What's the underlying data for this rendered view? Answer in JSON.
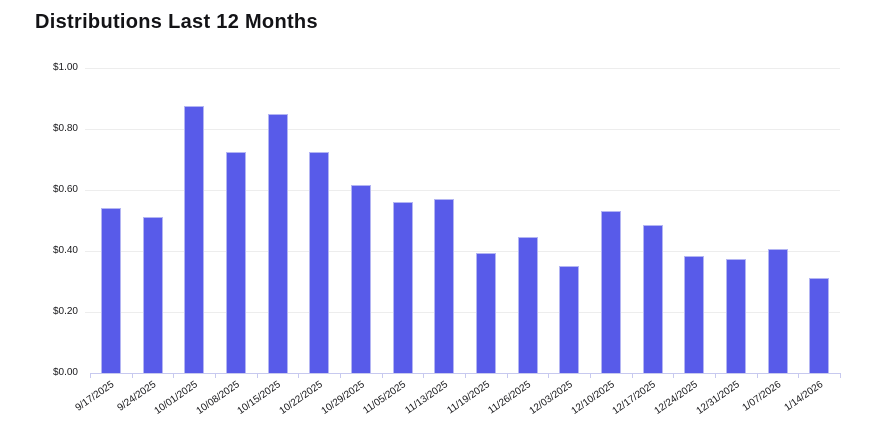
{
  "chart_data": {
    "type": "bar",
    "title": "Distributions Last 12 Months",
    "categories": [
      "9/17/2025",
      "9/24/2025",
      "10/01/2025",
      "10/08/2025",
      "10/15/2025",
      "10/22/2025",
      "10/29/2025",
      "11/05/2025",
      "11/13/2025",
      "11/19/2025",
      "11/26/2025",
      "12/03/2025",
      "12/10/2025",
      "12/17/2025",
      "12/24/2025",
      "12/31/2025",
      "1/07/2026",
      "1/14/2026"
    ],
    "values": [
      0.54,
      0.51,
      0.875,
      0.725,
      0.85,
      0.725,
      0.615,
      0.56,
      0.57,
      0.395,
      0.445,
      0.35,
      0.53,
      0.485,
      0.385,
      0.375,
      0.405,
      0.31
    ],
    "xlabel": "",
    "ylabel": "",
    "ylim": [
      0,
      1
    ],
    "yticks": [
      {
        "value": 0.0,
        "label": "$0.00"
      },
      {
        "value": 0.2,
        "label": "$0.20"
      },
      {
        "value": 0.4,
        "label": "$0.40"
      },
      {
        "value": 0.6,
        "label": "$0.60"
      },
      {
        "value": 0.8,
        "label": "$0.80"
      },
      {
        "value": 1.0,
        "label": "$1.00"
      }
    ],
    "grid": "horizontal",
    "legend": "none",
    "colors": {
      "bar_fill": "#585be9",
      "bar_border": "#b3b5f3",
      "gridline": "#ededed",
      "axis": "#c7c9ef",
      "label_text": "#18181b",
      "title_text": "#131316",
      "background": "#ffffff"
    }
  }
}
